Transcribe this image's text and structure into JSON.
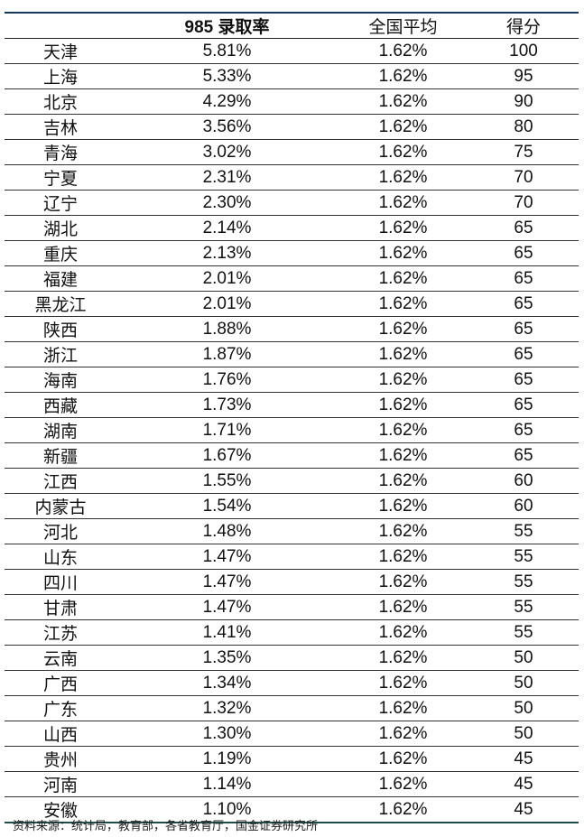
{
  "header": {
    "name": "",
    "rate": "985 录取率",
    "avg": "全国平均",
    "score": "得分"
  },
  "rows": [
    [
      "天津",
      "5.81%",
      "1.62%",
      "100"
    ],
    [
      "上海",
      "5.33%",
      "1.62%",
      "95"
    ],
    [
      "北京",
      "4.29%",
      "1.62%",
      "90"
    ],
    [
      "吉林",
      "3.56%",
      "1.62%",
      "80"
    ],
    [
      "青海",
      "3.02%",
      "1.62%",
      "75"
    ],
    [
      "宁夏",
      "2.31%",
      "1.62%",
      "70"
    ],
    [
      "辽宁",
      "2.30%",
      "1.62%",
      "70"
    ],
    [
      "湖北",
      "2.14%",
      "1.62%",
      "65"
    ],
    [
      "重庆",
      "2.13%",
      "1.62%",
      "65"
    ],
    [
      "福建",
      "2.01%",
      "1.62%",
      "65"
    ],
    [
      "黑龙江",
      "2.01%",
      "1.62%",
      "65"
    ],
    [
      "陕西",
      "1.88%",
      "1.62%",
      "65"
    ],
    [
      "浙江",
      "1.87%",
      "1.62%",
      "65"
    ],
    [
      "海南",
      "1.76%",
      "1.62%",
      "65"
    ],
    [
      "西藏",
      "1.73%",
      "1.62%",
      "65"
    ],
    [
      "湖南",
      "1.71%",
      "1.62%",
      "65"
    ],
    [
      "新疆",
      "1.67%",
      "1.62%",
      "65"
    ],
    [
      "江西",
      "1.55%",
      "1.62%",
      "60"
    ],
    [
      "内蒙古",
      "1.54%",
      "1.62%",
      "60"
    ],
    [
      "河北",
      "1.48%",
      "1.62%",
      "55"
    ],
    [
      "山东",
      "1.47%",
      "1.62%",
      "55"
    ],
    [
      "四川",
      "1.47%",
      "1.62%",
      "55"
    ],
    [
      "甘肃",
      "1.47%",
      "1.62%",
      "55"
    ],
    [
      "江苏",
      "1.41%",
      "1.62%",
      "55"
    ],
    [
      "云南",
      "1.35%",
      "1.62%",
      "50"
    ],
    [
      "广西",
      "1.34%",
      "1.62%",
      "50"
    ],
    [
      "广东",
      "1.32%",
      "1.62%",
      "50"
    ],
    [
      "山西",
      "1.30%",
      "1.62%",
      "50"
    ],
    [
      "贵州",
      "1.19%",
      "1.62%",
      "45"
    ],
    [
      "河南",
      "1.14%",
      "1.62%",
      "45"
    ],
    [
      "安徽",
      "1.10%",
      "1.62%",
      "45"
    ]
  ],
  "footnote": "资料来源：统计局，教育部，各省教育厅，国金证券研究所"
}
